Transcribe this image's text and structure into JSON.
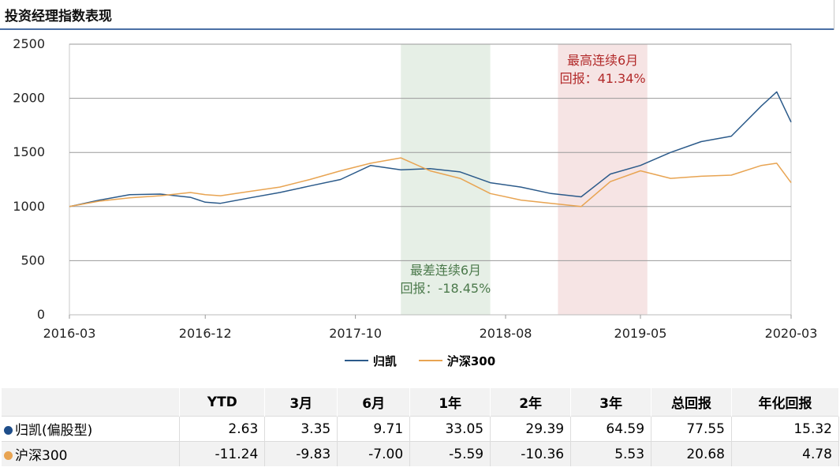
{
  "page": {
    "title": "投资经理指数表现"
  },
  "chart_data": {
    "type": "line",
    "y_ticks": [
      "2500",
      "2000",
      "1500",
      "1000",
      "500",
      "0"
    ],
    "ylim": [
      0,
      2500
    ],
    "grid": true,
    "x_ticks": [
      "2016-03",
      "2016-12",
      "2017-10",
      "2018-08",
      "2019-05",
      "2020-03"
    ],
    "x_tick_dates": [
      "2016-03-01",
      "2016-12-01",
      "2017-10-01",
      "2018-08-01",
      "2019-05-01",
      "2020-03-01"
    ],
    "xlim": [
      "2016-03-01",
      "2020-03-01"
    ],
    "legend_position": "bottom",
    "series": [
      {
        "name": "归凯",
        "color": "#2b5a8a",
        "points": [
          [
            "2016-03-01",
            1000
          ],
          [
            "2016-05-01",
            1060
          ],
          [
            "2016-07-01",
            1110
          ],
          [
            "2016-09-01",
            1115
          ],
          [
            "2016-11-01",
            1085
          ],
          [
            "2016-12-01",
            1040
          ],
          [
            "2017-01-01",
            1030
          ],
          [
            "2017-03-01",
            1080
          ],
          [
            "2017-05-01",
            1130
          ],
          [
            "2017-07-01",
            1190
          ],
          [
            "2017-09-01",
            1250
          ],
          [
            "2017-11-01",
            1380
          ],
          [
            "2018-01-01",
            1340
          ],
          [
            "2018-03-01",
            1350
          ],
          [
            "2018-05-01",
            1320
          ],
          [
            "2018-07-01",
            1220
          ],
          [
            "2018-09-01",
            1180
          ],
          [
            "2018-11-01",
            1120
          ],
          [
            "2019-01-01",
            1090
          ],
          [
            "2019-03-01",
            1300
          ],
          [
            "2019-05-01",
            1380
          ],
          [
            "2019-07-01",
            1500
          ],
          [
            "2019-09-01",
            1600
          ],
          [
            "2019-11-01",
            1650
          ],
          [
            "2020-01-01",
            1930
          ],
          [
            "2020-02-01",
            2060
          ],
          [
            "2020-03-01",
            1780
          ]
        ]
      },
      {
        "name": "沪深300",
        "color": "#e8a452",
        "points": [
          [
            "2016-03-01",
            1000
          ],
          [
            "2016-05-01",
            1050
          ],
          [
            "2016-07-01",
            1080
          ],
          [
            "2016-09-01",
            1100
          ],
          [
            "2016-11-01",
            1130
          ],
          [
            "2016-12-01",
            1110
          ],
          [
            "2017-01-01",
            1100
          ],
          [
            "2017-03-01",
            1140
          ],
          [
            "2017-05-01",
            1180
          ],
          [
            "2017-07-01",
            1250
          ],
          [
            "2017-09-01",
            1330
          ],
          [
            "2017-11-01",
            1400
          ],
          [
            "2018-01-01",
            1450
          ],
          [
            "2018-03-01",
            1330
          ],
          [
            "2018-05-01",
            1260
          ],
          [
            "2018-07-01",
            1120
          ],
          [
            "2018-09-01",
            1060
          ],
          [
            "2018-11-01",
            1030
          ],
          [
            "2019-01-01",
            1000
          ],
          [
            "2019-03-01",
            1230
          ],
          [
            "2019-05-01",
            1330
          ],
          [
            "2019-07-01",
            1260
          ],
          [
            "2019-09-01",
            1280
          ],
          [
            "2019-11-01",
            1290
          ],
          [
            "2020-01-01",
            1380
          ],
          [
            "2020-02-01",
            1400
          ],
          [
            "2020-03-01",
            1220
          ]
        ]
      }
    ],
    "bands": [
      {
        "start": "2018-01-01",
        "end": "2018-07-01",
        "color": "#e6efe6",
        "label": [
          "最差连续6月",
          "回报：-18.45%"
        ],
        "label_color": "#4c7a4c",
        "label_y": 370
      },
      {
        "start": "2018-11-15",
        "end": "2019-05-15",
        "color": "#f6e4e4",
        "label": [
          "最高连续6月",
          "回报：41.34%"
        ],
        "label_color": "#b22a2a",
        "label_y": 2310
      }
    ]
  },
  "table": {
    "headers": [
      "",
      "YTD",
      "3月",
      "6月",
      "1年",
      "2年",
      "3年",
      "总回报",
      "年化回报"
    ],
    "rows": [
      {
        "name": "归凯(偏股型)",
        "dot_color": "#1f4e8a",
        "values": [
          "2.63",
          "3.35",
          "9.71",
          "33.05",
          "29.39",
          "64.59",
          "77.55",
          "15.32"
        ]
      },
      {
        "name": "沪深300",
        "dot_color": "#e8a452",
        "values": [
          "-11.24",
          "-9.83",
          "-7.00",
          "-5.59",
          "-10.36",
          "5.53",
          "20.68",
          "4.78"
        ]
      }
    ]
  }
}
